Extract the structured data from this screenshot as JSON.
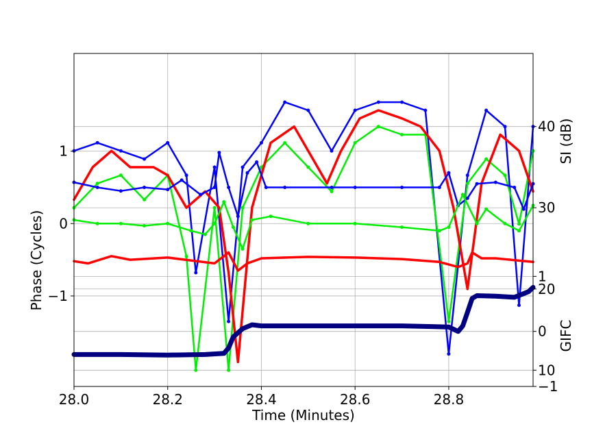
{
  "chart_data": {
    "type": "line",
    "title": "",
    "xlabel": "Time (Minutes)",
    "xlim": [
      28.0,
      28.98
    ],
    "xticks": [
      "28.0",
      "28.2",
      "28.4",
      "28.6",
      "28.8"
    ],
    "grid": true,
    "axes": {
      "phase": {
        "label": "Phase (Cycles)",
        "side": "left",
        "ylim": [
          -2.25,
          2.35
        ],
        "ticks": [
          "1",
          "0",
          "−1"
        ]
      },
      "si": {
        "label": "SI (dB)",
        "side": "right",
        "ylim": [
          8,
          49
        ],
        "ticks": [
          "10",
          "20",
          "30",
          "40"
        ]
      },
      "gifc": {
        "label": "GIFC",
        "side": "right",
        "ylim": [
          -1.0,
          5.05
        ],
        "ticks": [
          "1",
          "0",
          "−1"
        ]
      }
    },
    "series": [
      {
        "axis": "si",
        "color": "#0000ff",
        "style": "points",
        "x": [
          28.0,
          28.05,
          28.1,
          28.15,
          28.2,
          28.24,
          28.26,
          28.3,
          28.33,
          28.36,
          28.4,
          28.45,
          28.5,
          28.55,
          28.6,
          28.65,
          28.7,
          28.75,
          28.8,
          28.84,
          28.88,
          28.92,
          28.95,
          28.98
        ],
        "y": [
          37,
          38,
          37,
          36,
          38,
          34,
          22,
          35,
          16,
          35,
          38,
          43,
          42,
          37,
          42,
          43,
          43,
          42,
          12,
          34,
          42,
          40,
          18,
          40
        ]
      },
      {
        "axis": "si",
        "color": "#00ee00",
        "style": "points",
        "x": [
          28.0,
          28.05,
          28.1,
          28.15,
          28.2,
          28.24,
          28.26,
          28.3,
          28.33,
          28.36,
          28.4,
          28.45,
          28.5,
          28.55,
          28.6,
          28.65,
          28.7,
          28.75,
          28.8,
          28.84,
          28.88,
          28.92,
          28.95,
          28.98
        ],
        "y": [
          30,
          33,
          34,
          31,
          34,
          24,
          10,
          30,
          10,
          30,
          35,
          38,
          35,
          32,
          38,
          40,
          39,
          39,
          16,
          33,
          36,
          34,
          28,
          37
        ]
      },
      {
        "axis": "si",
        "color": "#ff0000",
        "style": "line",
        "x": [
          28.0,
          28.04,
          28.08,
          28.12,
          28.17,
          28.2,
          28.24,
          28.28,
          28.31,
          28.33,
          28.35,
          28.38,
          28.42,
          28.47,
          28.51,
          28.54,
          28.57,
          28.61,
          28.65,
          28.7,
          28.74,
          28.78,
          28.81,
          28.84,
          28.87,
          28.91,
          28.95,
          28.98
        ],
        "y": [
          31,
          35,
          37,
          35,
          35,
          34,
          30,
          32,
          30,
          22,
          11,
          30,
          38,
          40,
          36,
          33,
          37,
          41,
          42,
          41,
          40,
          37,
          30,
          20,
          33,
          39,
          37,
          32
        ]
      },
      {
        "axis": "phase",
        "color": "#0000ff",
        "style": "points",
        "x": [
          28.0,
          28.05,
          28.1,
          28.15,
          28.2,
          28.23,
          28.27,
          28.3,
          28.31,
          28.33,
          28.35,
          28.37,
          28.39,
          28.41,
          28.45,
          28.55,
          28.6,
          28.7,
          28.78,
          28.8,
          28.82,
          28.84,
          28.86,
          28.9,
          28.94,
          28.96,
          28.98
        ],
        "y": [
          0.57,
          0.5,
          0.45,
          0.5,
          0.47,
          0.6,
          0.4,
          0.5,
          0.98,
          0.5,
          0.1,
          0.7,
          0.85,
          0.5,
          0.5,
          0.5,
          0.5,
          0.5,
          0.5,
          0.7,
          0.25,
          0.35,
          0.55,
          0.57,
          0.5,
          0.2,
          0.55
        ]
      },
      {
        "axis": "phase",
        "color": "#00ee00",
        "style": "points",
        "x": [
          28.0,
          28.05,
          28.1,
          28.15,
          28.2,
          28.25,
          28.28,
          28.3,
          28.32,
          28.34,
          28.36,
          28.38,
          28.42,
          28.5,
          28.6,
          28.7,
          28.78,
          28.8,
          28.83,
          28.86,
          28.88,
          28.92,
          28.95,
          28.98
        ],
        "y": [
          0.05,
          0.0,
          0.0,
          -0.03,
          0.0,
          -0.1,
          -0.15,
          0.0,
          0.3,
          -0.05,
          -0.35,
          0.05,
          0.1,
          0.0,
          0.0,
          -0.05,
          -0.1,
          -0.05,
          0.4,
          0.0,
          0.2,
          0.0,
          -0.1,
          0.25
        ]
      },
      {
        "axis": "phase",
        "color": "#ff0000",
        "style": "line",
        "x": [
          28.0,
          28.03,
          28.08,
          28.12,
          28.2,
          28.3,
          28.33,
          28.35,
          28.37,
          28.4,
          28.5,
          28.6,
          28.7,
          28.78,
          28.82,
          28.84,
          28.85,
          28.87,
          28.9,
          28.98
        ],
        "y": [
          -0.52,
          -0.55,
          -0.45,
          -0.5,
          -0.47,
          -0.55,
          -0.4,
          -0.65,
          -0.55,
          -0.48,
          -0.46,
          -0.47,
          -0.49,
          -0.53,
          -0.6,
          -0.55,
          -0.4,
          -0.48,
          -0.48,
          -0.53
        ]
      },
      {
        "axis": "gifc",
        "color": "#000080",
        "style": "thick",
        "x": [
          28.0,
          28.1,
          28.2,
          28.28,
          28.32,
          28.33,
          28.34,
          28.36,
          28.38,
          28.4,
          28.5,
          28.6,
          28.7,
          28.8,
          28.82,
          28.83,
          28.84,
          28.85,
          28.86,
          28.9,
          28.94,
          28.97,
          28.98
        ],
        "y": [
          -0.42,
          -0.42,
          -0.43,
          -0.42,
          -0.4,
          -0.3,
          -0.1,
          0.05,
          0.12,
          0.1,
          0.1,
          0.1,
          0.1,
          0.08,
          0.0,
          0.1,
          0.35,
          0.6,
          0.65,
          0.64,
          0.62,
          0.72,
          0.8
        ]
      }
    ]
  }
}
